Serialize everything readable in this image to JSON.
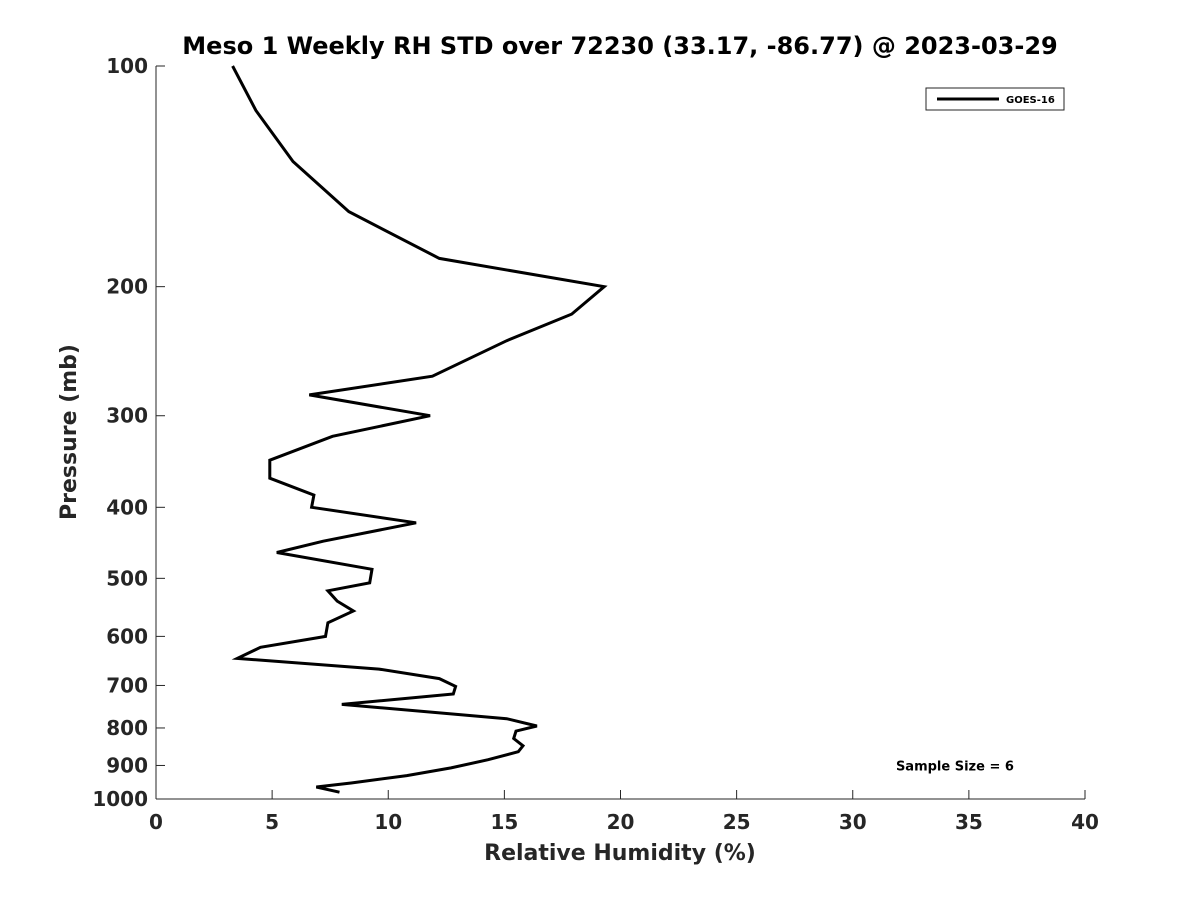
{
  "chart_data": {
    "type": "line",
    "title": "Meso 1 Weekly RH STD over 72230 (33.17, -86.77) @ 2023-03-29",
    "xlabel": "Relative Humidity (%)",
    "ylabel": "Pressure (mb)",
    "xlim": [
      0,
      40
    ],
    "ylim": [
      100,
      1000
    ],
    "y_scale": "log",
    "y_reversed": true,
    "x_ticks": [
      0,
      5,
      10,
      15,
      20,
      25,
      30,
      35,
      40
    ],
    "y_ticks": [
      100,
      200,
      300,
      400,
      500,
      600,
      700,
      800,
      900,
      1000
    ],
    "grid": false,
    "legend_position": "top-right",
    "series": [
      {
        "name": "GOES-16",
        "color": "#000000",
        "points": [
          [
            3.3,
            100
          ],
          [
            4.3,
            115
          ],
          [
            5.9,
            135
          ],
          [
            8.3,
            158
          ],
          [
            12.2,
            183
          ],
          [
            19.3,
            200
          ],
          [
            17.9,
            218
          ],
          [
            15.1,
            237
          ],
          [
            11.9,
            265
          ],
          [
            6.6,
            281
          ],
          [
            11.8,
            300
          ],
          [
            7.6,
            320
          ],
          [
            4.9,
            345
          ],
          [
            4.9,
            365
          ],
          [
            6.8,
            385
          ],
          [
            6.7,
            400
          ],
          [
            11.2,
            420
          ],
          [
            7.2,
            445
          ],
          [
            5.2,
            461
          ],
          [
            9.3,
            486
          ],
          [
            9.2,
            507
          ],
          [
            7.4,
            520
          ],
          [
            7.8,
            537
          ],
          [
            8.5,
            554
          ],
          [
            7.4,
            575
          ],
          [
            7.3,
            600
          ],
          [
            4.5,
            621
          ],
          [
            3.5,
            643
          ],
          [
            9.6,
            665
          ],
          [
            12.2,
            685
          ],
          [
            12.9,
            702
          ],
          [
            12.8,
            719
          ],
          [
            8.0,
            743
          ],
          [
            15.1,
            777
          ],
          [
            16.4,
            795
          ],
          [
            15.5,
            808
          ],
          [
            15.4,
            827
          ],
          [
            15.8,
            846
          ],
          [
            15.6,
            862
          ],
          [
            14.3,
            884
          ],
          [
            12.7,
            907
          ],
          [
            10.8,
            929
          ],
          [
            8.4,
            951
          ],
          [
            6.9,
            963
          ],
          [
            7.9,
            979
          ]
        ]
      }
    ],
    "annotations": [
      {
        "text": "Sample Size = 6",
        "x": 34.4,
        "y": 900
      }
    ]
  }
}
